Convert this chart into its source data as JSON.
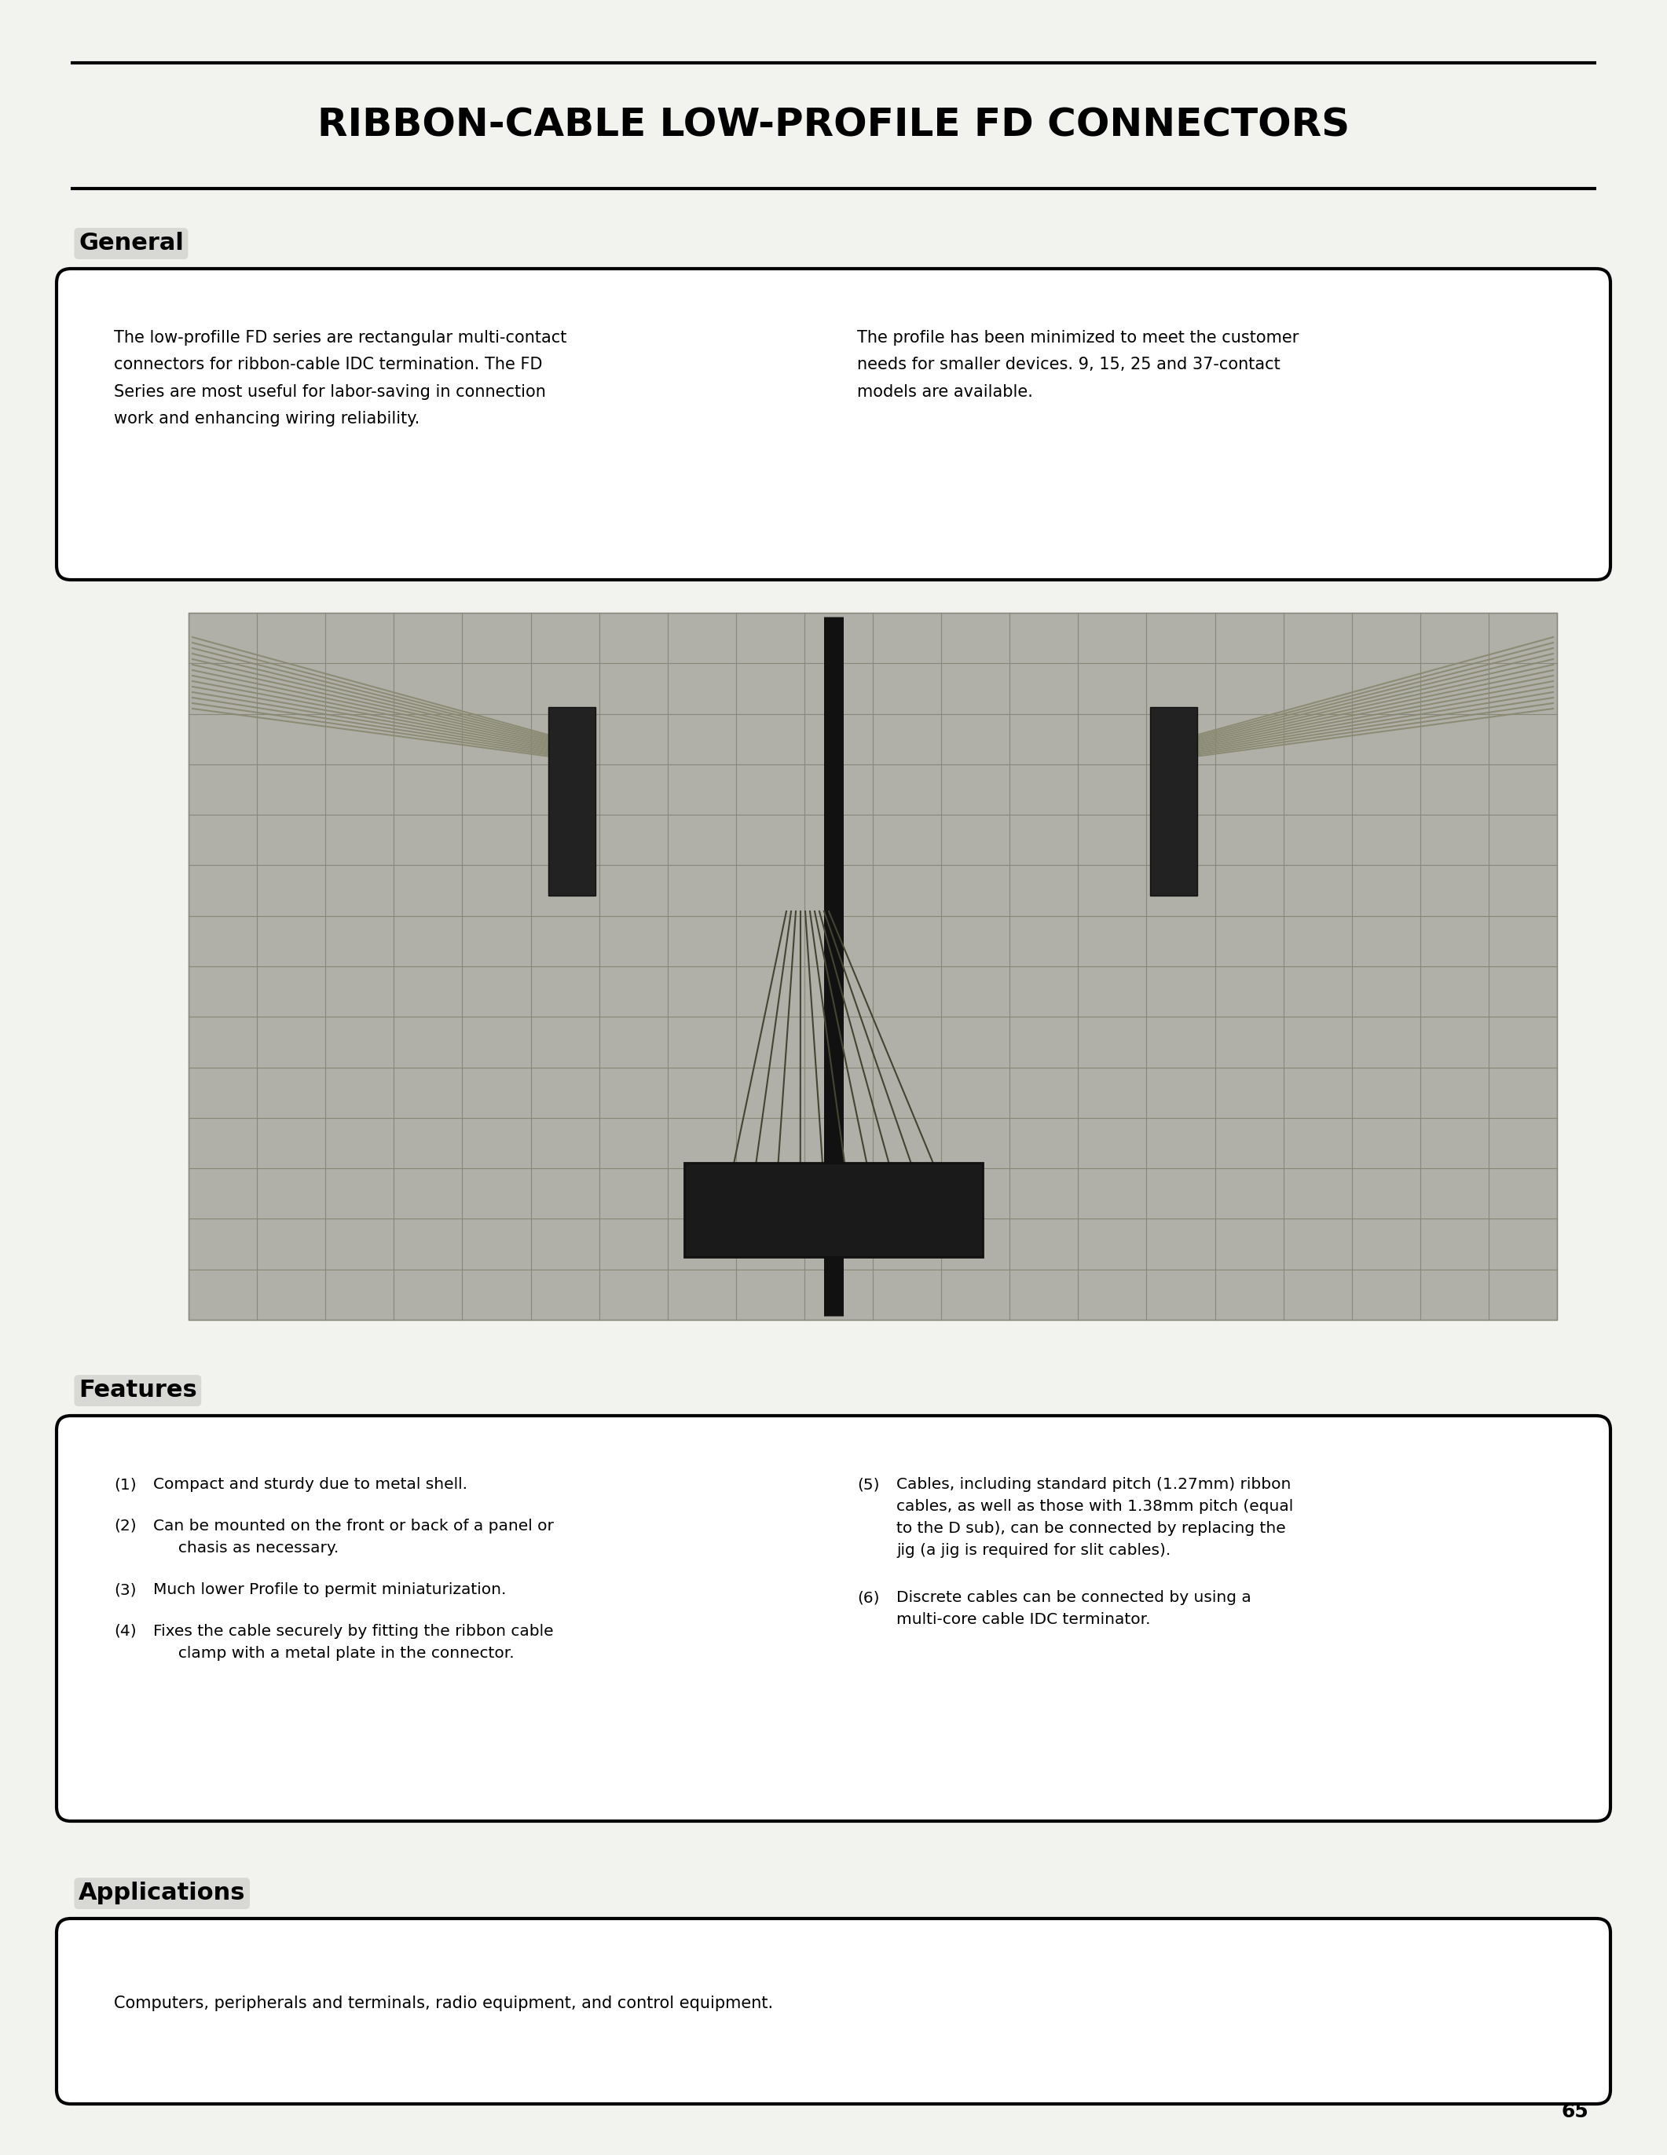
{
  "page_bg": "#f2f2ee",
  "title": "RIBBON-CABLE LOW-PROFILE FD CONNECTORS",
  "title_fontsize": 36,
  "general_header": "General",
  "general_text_left": "The low-profille FD series are rectangular multi-contact\nconnectors for ribbon-cable IDC termination. The FD\nSeries are most useful for labor-saving in connection\nwork and enhancing wiring reliability.",
  "general_text_right": "The profile has been minimized to meet the customer\nneeds for smaller devices. 9, 15, 25 and 37-contact\nmodels are available.",
  "features_header": "Features",
  "features_left_lines": [
    [
      "(1)",
      "Compact and sturdy due to metal shell."
    ],
    [
      "(2)",
      "Can be mounted on the front or back of a panel or\n     chasis as necessary."
    ],
    [
      "(3)",
      "Much lower Profile to permit miniaturization."
    ],
    [
      "(4)",
      "Fixes the cable securely by fitting the ribbon cable\n     clamp with a metal plate in the connector."
    ]
  ],
  "features_right_lines": [
    [
      "(5)",
      "Cables, including standard pitch (1.27mm) ribbon\ncables, as well as those with 1.38mm pitch (equal\nto the D sub), can be connected by replacing the\njig (a jig is required for slit cables)."
    ],
    [
      "(6)",
      "Discrete cables can be connected by using a\nmulti-core cable IDC terminator."
    ]
  ],
  "applications_header": "Applications",
  "applications_text": "Computers, peripherals and terminals, radio equipment, and control equipment.",
  "page_number": "65"
}
